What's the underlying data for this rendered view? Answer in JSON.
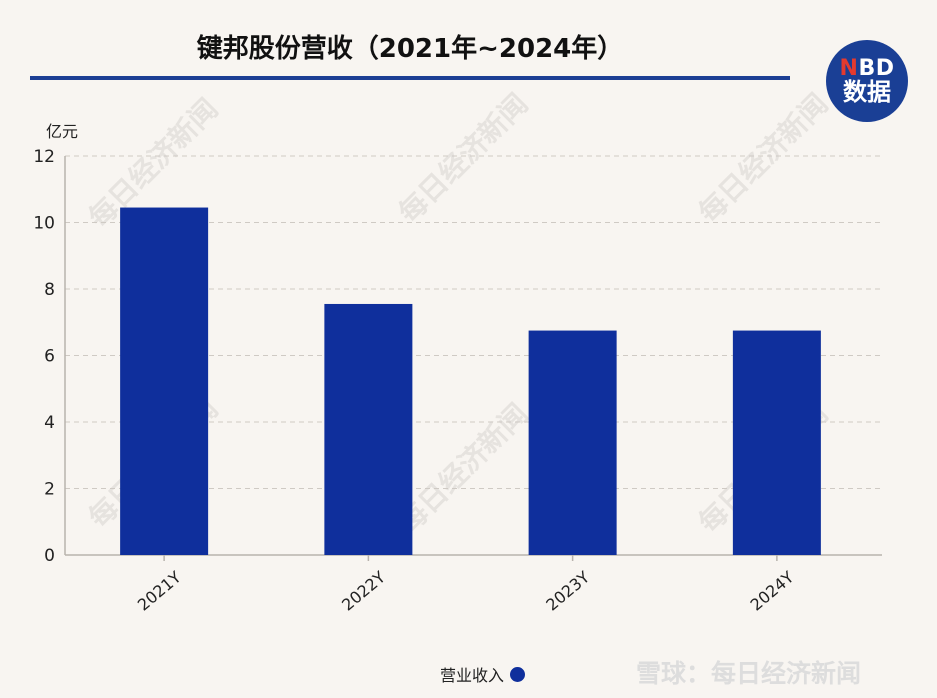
{
  "title": "键邦股份营收（2021年~2024年）",
  "logo": {
    "line1_n": "N",
    "line1_rest": "BD",
    "line2": "数据"
  },
  "watermark": "每日经济新闻",
  "footer": "雪球：每日经济新闻",
  "colors": {
    "bar": "#0f2f9c",
    "accent": "#1c3f94",
    "background": "#f8f5f1"
  },
  "chart_data": {
    "type": "bar",
    "ylabel": "亿元",
    "categories": [
      "2021Y",
      "2022Y",
      "2023Y",
      "2024Y"
    ],
    "series": [
      {
        "name": "营业收入",
        "values": [
          10.45,
          7.55,
          6.75,
          6.75
        ]
      }
    ],
    "ylim": [
      0,
      12
    ],
    "yticks": [
      0,
      2,
      4,
      6,
      8,
      10,
      12
    ],
    "grid": true,
    "legend_position": "bottom"
  }
}
